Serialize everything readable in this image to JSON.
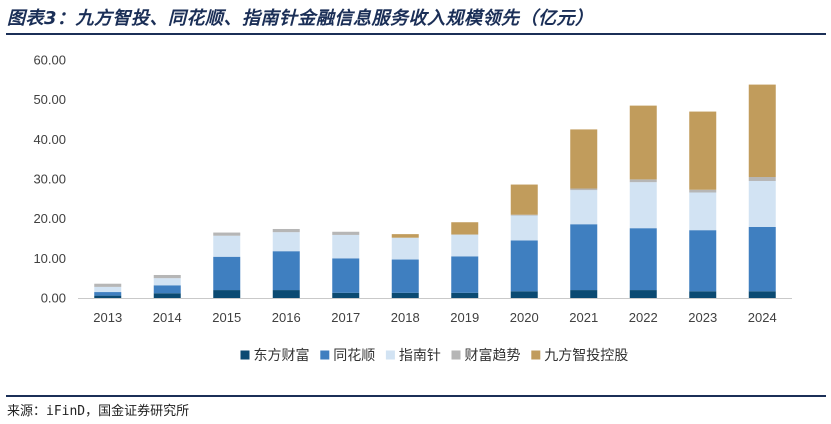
{
  "title": "图表3：九方智投、同花顺、指南针金融信息服务收入规模领先（亿元）",
  "source": "来源：iFinD，国金证券研究所",
  "chart_data": {
    "type": "bar",
    "stacked": true,
    "categories": [
      "2013",
      "2014",
      "2015",
      "2016",
      "2017",
      "2018",
      "2019",
      "2020",
      "2021",
      "2022",
      "2023",
      "2024"
    ],
    "ylim": [
      0,
      60
    ],
    "yticks": [
      "0.00",
      "10.00",
      "20.00",
      "30.00",
      "40.00",
      "50.00",
      "60.00"
    ],
    "grid": false,
    "legend_position": "bottom",
    "series": [
      {
        "name": "东方财富",
        "color": "#0b4a72",
        "values": [
          0.6,
          1.2,
          2.0,
          2.0,
          1.3,
          1.3,
          1.3,
          1.7,
          2.0,
          2.0,
          1.7,
          1.7
        ]
      },
      {
        "name": "同花顺",
        "color": "#3f7fc0",
        "values": [
          0.9,
          2.0,
          8.4,
          9.8,
          8.7,
          8.4,
          9.2,
          12.8,
          16.6,
          15.6,
          15.4,
          16.2
        ]
      },
      {
        "name": "指南针",
        "color": "#d2e3f3",
        "values": [
          1.3,
          1.8,
          5.3,
          4.8,
          5.9,
          5.5,
          5.5,
          6.3,
          8.6,
          11.6,
          9.5,
          11.6
        ]
      },
      {
        "name": "财富趋势",
        "color": "#b6b6b6",
        "values": [
          0.8,
          0.8,
          0.8,
          0.8,
          0.8,
          0.0,
          0.0,
          0.2,
          0.4,
          0.7,
          0.7,
          1.0
        ]
      },
      {
        "name": "九方智投控股",
        "color": "#c19c5c",
        "values": [
          0.0,
          0.0,
          0.0,
          0.0,
          0.0,
          0.9,
          3.1,
          7.6,
          14.9,
          18.6,
          19.7,
          23.3
        ]
      }
    ]
  }
}
